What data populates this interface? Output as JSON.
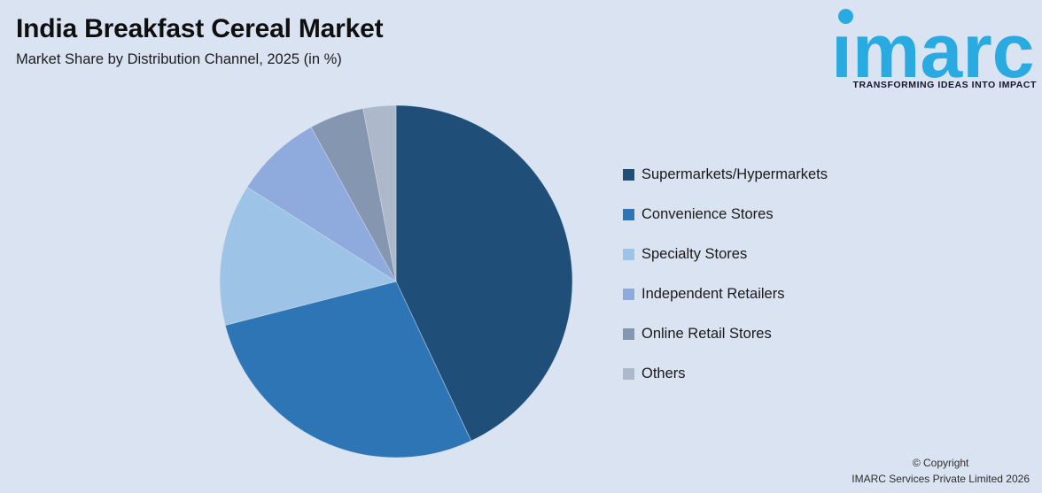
{
  "page": {
    "background_color": "#DAE3F1"
  },
  "header": {
    "title": "India Breakfast Cereal Market",
    "subtitle": "Market Share by Distribution Channel, 2025 (in %)"
  },
  "logo": {
    "brand": "imarc",
    "brand_display": "ımarc",
    "tagline": "TRANSFORMING IDEAS INTO IMPACT",
    "brand_color": "#29ABE2",
    "tagline_color": "#15152B"
  },
  "chart_data": {
    "type": "pie",
    "title": "India Breakfast Cereal Market",
    "subtitle": "Market Share by Distribution Channel, 2025 (in %)",
    "unit": "%",
    "start_angle_deg": 0,
    "direction": "clockwise",
    "legend_position": "right",
    "grid": false,
    "categories": [
      "Supermarkets/Hypermarkets",
      "Convenience Stores",
      "Specialty Stores",
      "Independent Retailers",
      "Online Retail Stores",
      "Others"
    ],
    "values": [
      43,
      28,
      13,
      8,
      5,
      3
    ],
    "colors": [
      "#1F4E79",
      "#2E75B6",
      "#9DC3E6",
      "#8FAADC",
      "#8496B0",
      "#ADB9CA"
    ]
  },
  "footer": {
    "line1": "© Copyright",
    "line2": "IMARC Services Private Limited 2026"
  }
}
